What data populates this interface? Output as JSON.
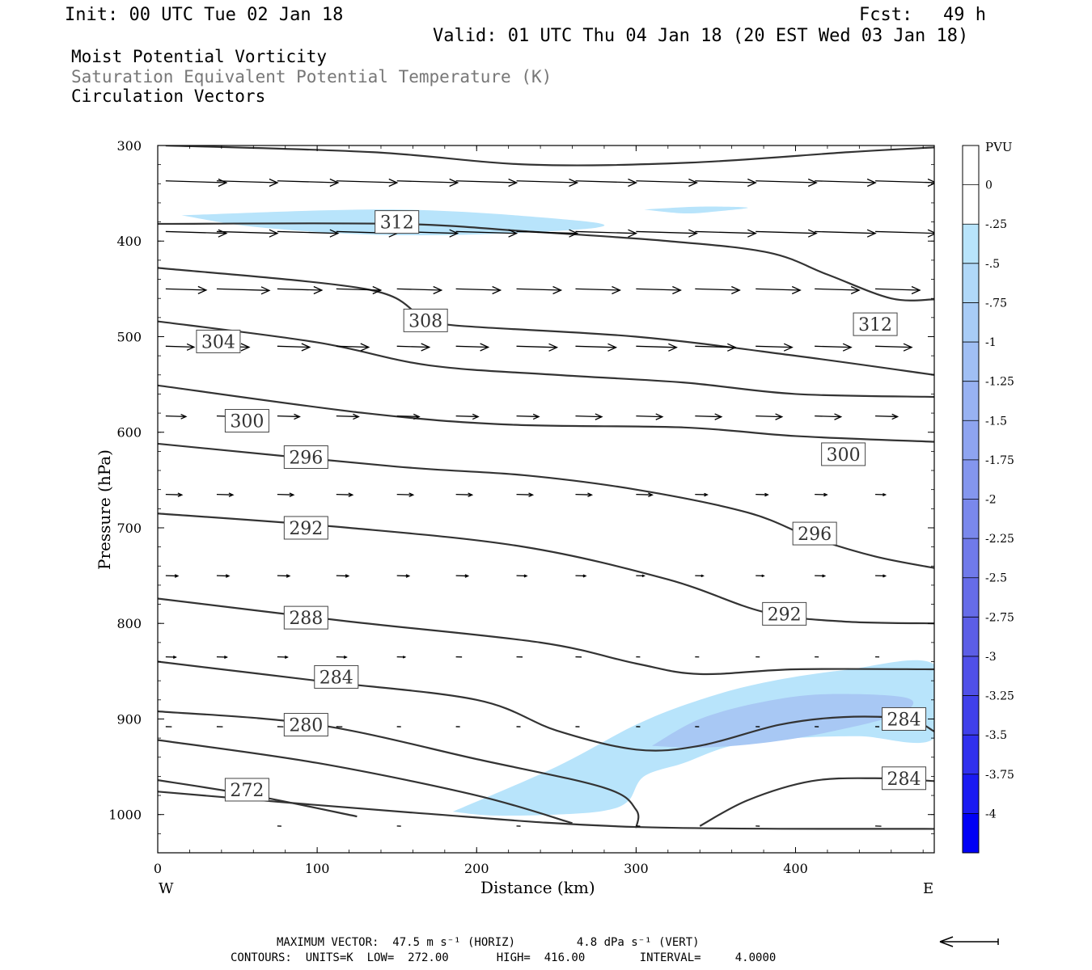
{
  "header": {
    "init": "Init: 00 UTC Tue 02 Jan 18",
    "fcst_label": "Fcst:",
    "fcst_value": "49 h",
    "valid": "Valid: 01 UTC Thu 04 Jan 18 (20 EST Wed 03 Jan 18)",
    "line1": "Moist Potential Vorticity",
    "line2": "Saturation Equivalent Potential Temperature (K)",
    "line3": "Circulation Vectors"
  },
  "footer": {
    "max_vector": "MAXIMUM VECTOR:  47.5 m s⁻¹ (HORIZ)         4.8 dPa s⁻¹ (VERT)",
    "contours": "CONTOURS:  UNITS=K  LOW=  272.00       HIGH=  416.00        INTERVAL=     4.0000"
  },
  "colors": {
    "contour": "#333333",
    "pv_light": "#b8e4fb",
    "pv_medium": "#a8c8f4",
    "vector": "#000000"
  },
  "chart_data": {
    "type": "contour-cross-section",
    "xlabel": "Distance (km)",
    "ylabel": "Pressure (hPa)",
    "xlim": [
      0,
      487
    ],
    "ylim": [
      300,
      1040
    ],
    "x_ticks": [
      "0",
      "100",
      "200",
      "300",
      "400"
    ],
    "x_tick_values": [
      0,
      100,
      200,
      300,
      400
    ],
    "y_ticks": [
      "300",
      "400",
      "500",
      "600",
      "700",
      "800",
      "900",
      "1000"
    ],
    "y_tick_values": [
      300,
      400,
      500,
      600,
      700,
      800,
      900,
      1000
    ],
    "west_label": "W",
    "east_label": "E",
    "colorbar": {
      "title": "PVU",
      "labels": [
        "0",
        "-.25",
        "-.5",
        "-.75",
        "-1",
        "-1.25",
        "-1.5",
        "-1.75",
        "-2",
        "-2.25",
        "-2.5",
        "-2.75",
        "-3",
        "-3.25",
        "-3.5",
        "-3.75",
        "-4"
      ],
      "colors": [
        "#ffffff",
        "#ffffff",
        "#b8e4fb",
        "#b0d8f8",
        "#a8ccf6",
        "#a0bff4",
        "#98b2f2",
        "#8ea4f0",
        "#8496ee",
        "#7a88ec",
        "#707aea",
        "#666ce8",
        "#5c5ee6",
        "#5050e8",
        "#4040ea",
        "#3030ee",
        "#1a1af2",
        "#0000f6"
      ]
    },
    "contour_labels": [
      {
        "label": "312",
        "x": 150,
        "p": 380
      },
      {
        "label": "308",
        "x": 168,
        "p": 483
      },
      {
        "label": "304",
        "x": 38,
        "p": 505
      },
      {
        "label": "312",
        "x": 450,
        "p": 487
      },
      {
        "label": "300",
        "x": 56,
        "p": 588
      },
      {
        "label": "296",
        "x": 93,
        "p": 626
      },
      {
        "label": "300",
        "x": 430,
        "p": 623
      },
      {
        "label": "292",
        "x": 93,
        "p": 700
      },
      {
        "label": "296",
        "x": 412,
        "p": 706
      },
      {
        "label": "288",
        "x": 93,
        "p": 794
      },
      {
        "label": "292",
        "x": 393,
        "p": 790
      },
      {
        "label": "284",
        "x": 112,
        "p": 856
      },
      {
        "label": "280",
        "x": 93,
        "p": 906
      },
      {
        "label": "284",
        "x": 468,
        "p": 900
      },
      {
        "label": "272",
        "x": 56,
        "p": 974
      },
      {
        "label": "284",
        "x": 468,
        "p": 962
      }
    ],
    "contours": [
      [
        [
          5,
          300
        ],
        [
          135,
          307
        ],
        [
          233,
          320
        ],
        [
          333,
          318
        ],
        [
          433,
          307
        ],
        [
          487,
          302
        ]
      ],
      [
        [
          0,
          382
        ],
        [
          150,
          382
        ],
        [
          233,
          390
        ],
        [
          320,
          400
        ],
        [
          383,
          412
        ],
        [
          420,
          435
        ],
        [
          460,
          460
        ],
        [
          487,
          461
        ]
      ],
      [
        [
          0,
          428
        ],
        [
          130,
          450
        ],
        [
          165,
          478
        ],
        [
          185,
          488
        ],
        [
          300,
          500
        ],
        [
          400,
          520
        ],
        [
          487,
          540
        ]
      ],
      [
        [
          0,
          484
        ],
        [
          100,
          506
        ],
        [
          170,
          530
        ],
        [
          250,
          540
        ],
        [
          330,
          548
        ],
        [
          400,
          560
        ],
        [
          487,
          563
        ]
      ],
      [
        [
          0,
          551
        ],
        [
          130,
          580
        ],
        [
          220,
          592
        ],
        [
          330,
          595
        ],
        [
          400,
          604
        ],
        [
          487,
          610
        ]
      ],
      [
        [
          0,
          612
        ],
        [
          150,
          636
        ],
        [
          230,
          645
        ],
        [
          300,
          660
        ],
        [
          370,
          684
        ],
        [
          410,
          710
        ],
        [
          450,
          730
        ],
        [
          487,
          742
        ]
      ],
      [
        [
          0,
          685
        ],
        [
          120,
          700
        ],
        [
          230,
          720
        ],
        [
          320,
          754
        ],
        [
          380,
          788
        ],
        [
          430,
          798
        ],
        [
          487,
          800
        ]
      ],
      [
        [
          0,
          774
        ],
        [
          120,
          798
        ],
        [
          240,
          820
        ],
        [
          300,
          842
        ],
        [
          340,
          853
        ],
        [
          400,
          848
        ],
        [
          487,
          848
        ]
      ],
      [
        [
          0,
          840
        ],
        [
          100,
          860
        ],
        [
          200,
          880
        ],
        [
          250,
          912
        ],
        [
          300,
          932
        ],
        [
          340,
          928
        ],
        [
          390,
          906
        ],
        [
          430,
          898
        ],
        [
          470,
          900
        ],
        [
          487,
          913
        ]
      ],
      [
        [
          0,
          892
        ],
        [
          100,
          906
        ],
        [
          200,
          942
        ],
        [
          280,
          972
        ],
        [
          300,
          995
        ],
        [
          300,
          1014
        ]
      ],
      [
        [
          0,
          922
        ],
        [
          100,
          946
        ],
        [
          200,
          980
        ],
        [
          260,
          1009
        ]
      ],
      [
        [
          0,
          964
        ],
        [
          60,
          980
        ],
        [
          125,
          1002
        ]
      ],
      [
        [
          0,
          976
        ],
        [
          160,
          998
        ],
        [
          300,
          1013
        ],
        [
          487,
          1015
        ]
      ],
      [
        [
          340,
          1012
        ],
        [
          370,
          985
        ],
        [
          410,
          965
        ],
        [
          450,
          962
        ],
        [
          487,
          965
        ]
      ]
    ],
    "pv_regions": [
      {
        "level": "-.25",
        "polygon": [
          [
            15,
            373
          ],
          [
            150,
            367
          ],
          [
            260,
            378
          ],
          [
            275,
            386
          ],
          [
            200,
            393
          ],
          [
            130,
            393
          ],
          [
            60,
            385
          ]
        ]
      },
      {
        "level": "-.25",
        "polygon": [
          [
            305,
            367
          ],
          [
            340,
            364
          ],
          [
            370,
            365
          ],
          [
            350,
            369
          ],
          [
            330,
            371
          ]
        ]
      },
      {
        "level": "-.25",
        "polygon": [
          [
            185,
            997
          ],
          [
            250,
            950
          ],
          [
            300,
            906
          ],
          [
            340,
            880
          ],
          [
            380,
            862
          ],
          [
            430,
            849
          ],
          [
            487,
            843
          ],
          [
            487,
            920
          ],
          [
            440,
            918
          ],
          [
            400,
            920
          ],
          [
            360,
            928
          ],
          [
            330,
            946
          ],
          [
            305,
            960
          ],
          [
            295,
            986
          ],
          [
            280,
            996
          ],
          [
            250,
            1000
          ],
          [
            210,
            1001
          ]
        ]
      },
      {
        "level": "-.5",
        "polygon": [
          [
            310,
            928
          ],
          [
            340,
            900
          ],
          [
            380,
            882
          ],
          [
            420,
            874
          ],
          [
            470,
            878
          ],
          [
            465,
            895
          ],
          [
            420,
            914
          ],
          [
            380,
            925
          ],
          [
            340,
            930
          ]
        ]
      }
    ],
    "vectors": [
      {
        "p": 337,
        "items": [
          [
            5,
            30
          ],
          [
            37,
            30
          ],
          [
            75,
            30
          ],
          [
            112,
            30
          ],
          [
            150,
            30
          ],
          [
            187,
            30
          ],
          [
            225,
            30
          ],
          [
            262,
            30
          ],
          [
            300,
            30
          ],
          [
            337,
            30
          ],
          [
            375,
            30
          ],
          [
            412,
            30
          ],
          [
            450,
            30
          ]
        ]
      },
      {
        "p": 390,
        "items": [
          [
            5,
            30
          ],
          [
            37,
            30
          ],
          [
            75,
            30
          ],
          [
            112,
            30
          ],
          [
            150,
            30
          ],
          [
            187,
            30
          ],
          [
            225,
            30
          ],
          [
            262,
            30
          ],
          [
            300,
            30
          ],
          [
            337,
            30
          ],
          [
            375,
            30
          ],
          [
            412,
            30
          ],
          [
            450,
            30
          ]
        ]
      },
      {
        "p": 450,
        "items": [
          [
            5,
            20
          ],
          [
            37,
            26
          ],
          [
            75,
            22
          ],
          [
            112,
            22
          ],
          [
            150,
            22
          ],
          [
            187,
            22
          ],
          [
            225,
            22
          ],
          [
            262,
            22
          ],
          [
            300,
            22
          ],
          [
            337,
            22
          ],
          [
            375,
            22
          ],
          [
            412,
            22
          ],
          [
            450,
            22
          ]
        ]
      },
      {
        "p": 510,
        "items": [
          [
            5,
            14
          ],
          [
            37,
            16
          ],
          [
            75,
            16
          ],
          [
            112,
            16
          ],
          [
            150,
            16
          ],
          [
            187,
            16
          ],
          [
            225,
            20
          ],
          [
            262,
            20
          ],
          [
            300,
            20
          ],
          [
            337,
            20
          ],
          [
            375,
            18
          ],
          [
            412,
            18
          ],
          [
            450,
            18
          ]
        ]
      },
      {
        "p": 583,
        "items": [
          [
            5,
            10
          ],
          [
            37,
            11
          ],
          [
            75,
            11
          ],
          [
            112,
            11
          ],
          [
            150,
            11
          ],
          [
            187,
            11
          ],
          [
            225,
            11
          ],
          [
            262,
            13
          ],
          [
            300,
            13
          ],
          [
            337,
            13
          ],
          [
            375,
            13
          ],
          [
            412,
            13
          ],
          [
            450,
            11
          ]
        ]
      },
      {
        "p": 665,
        "items": [
          [
            5,
            8
          ],
          [
            37,
            8
          ],
          [
            75,
            8
          ],
          [
            112,
            8
          ],
          [
            150,
            8
          ],
          [
            187,
            8
          ],
          [
            225,
            8
          ],
          [
            262,
            8
          ],
          [
            300,
            8
          ],
          [
            337,
            6
          ],
          [
            375,
            6
          ],
          [
            412,
            6
          ],
          [
            450,
            5
          ]
        ]
      },
      {
        "p": 750,
        "items": [
          [
            5,
            6
          ],
          [
            37,
            6
          ],
          [
            75,
            6
          ],
          [
            112,
            6
          ],
          [
            150,
            6
          ],
          [
            187,
            6
          ],
          [
            225,
            5
          ],
          [
            262,
            5
          ],
          [
            300,
            4
          ],
          [
            337,
            4
          ],
          [
            375,
            4
          ],
          [
            412,
            5
          ],
          [
            450,
            5
          ]
        ]
      },
      {
        "p": 835,
        "items": [
          [
            5,
            5
          ],
          [
            37,
            5
          ],
          [
            75,
            5
          ],
          [
            112,
            5
          ],
          [
            150,
            4
          ],
          [
            187,
            3
          ],
          [
            225,
            3
          ],
          [
            262,
            3
          ],
          [
            300,
            2
          ],
          [
            337,
            2
          ],
          [
            375,
            2
          ],
          [
            412,
            2
          ],
          [
            450,
            2
          ]
        ]
      },
      {
        "p": 908,
        "items": [
          [
            5,
            3
          ],
          [
            37,
            3
          ],
          [
            75,
            3
          ],
          [
            112,
            3
          ],
          [
            150,
            2
          ],
          [
            187,
            2
          ],
          [
            225,
            2
          ],
          [
            262,
            2
          ],
          [
            300,
            2
          ],
          [
            337,
            2
          ],
          [
            375,
            2
          ],
          [
            412,
            2
          ],
          [
            450,
            2
          ]
        ]
      },
      {
        "p": 1012,
        "items": [
          [
            75,
            2
          ],
          [
            150,
            2
          ],
          [
            225,
            2
          ],
          [
            300,
            2
          ],
          [
            375,
            2
          ],
          [
            450,
            3
          ]
        ]
      }
    ]
  }
}
